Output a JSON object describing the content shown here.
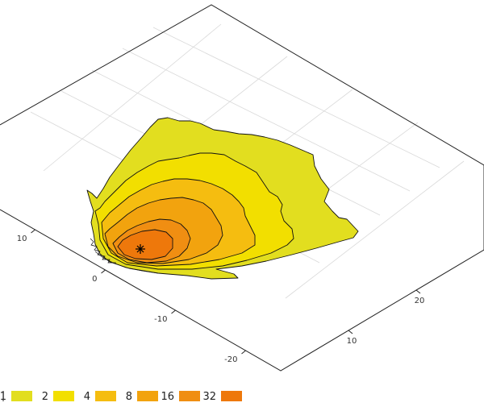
{
  "chart_data": {
    "type": "heatmap",
    "title": "",
    "xlabel": "",
    "ylabel": "",
    "grid": true,
    "legend_position": "bottom-left",
    "axis_a_ticks": [
      {
        "label": "10",
        "value": 10
      },
      {
        "label": "0",
        "value": 0
      },
      {
        "label": "-10",
        "value": -10
      },
      {
        "label": "-20",
        "value": -20
      }
    ],
    "axis_b_ticks": [
      {
        "label": "10",
        "value": 10
      },
      {
        "label": "20",
        "value": 20
      }
    ],
    "axis_a_range": [
      -25,
      15
    ],
    "axis_b_range": [
      0,
      30
    ],
    "source_marker": {
      "a": 0,
      "b": 5,
      "symbol": "asterisk"
    },
    "levels": [
      {
        "label": "1",
        "value": 1,
        "color": "#e2de1f"
      },
      {
        "label": "2",
        "value": 2,
        "color": "#f2df00"
      },
      {
        "label": "4",
        "value": 4,
        "color": "#f5bd10"
      },
      {
        "label": "8",
        "value": 8,
        "color": "#f2a30e"
      },
      {
        "label": "16",
        "value": 16,
        "color": "#f08e12"
      },
      {
        "label": "32",
        "value": 32,
        "color": "#ee780b"
      }
    ]
  }
}
